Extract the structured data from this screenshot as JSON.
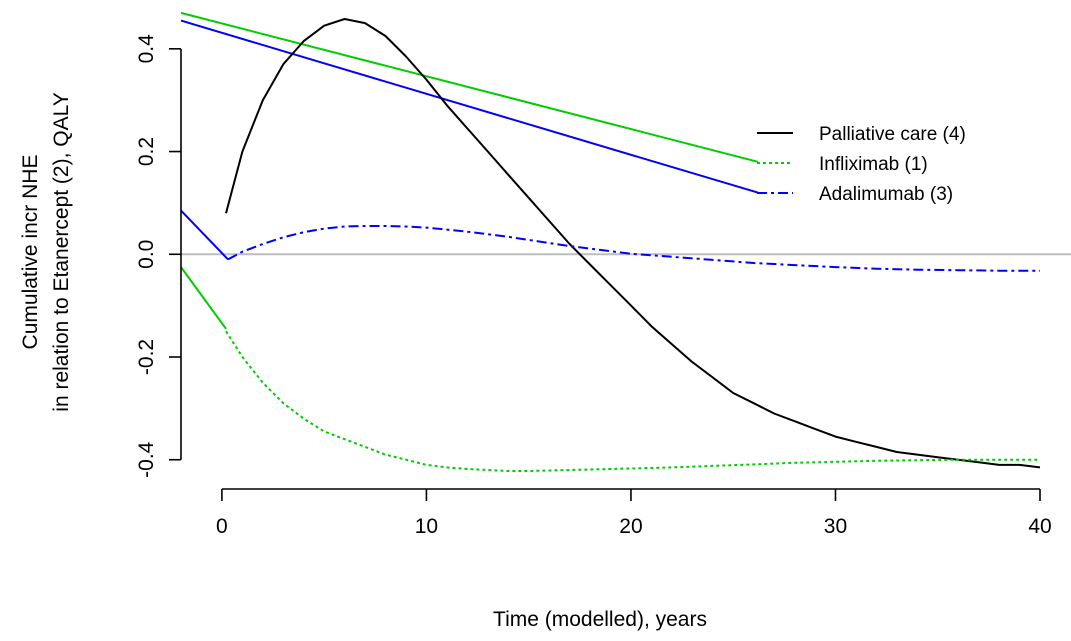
{
  "chart_data": {
    "type": "line",
    "xlabel": "Time (modelled), years",
    "ylabel_line1": "Cumulative incr NHE",
    "ylabel_line2": "in relation to Etanercept (2), QALY",
    "xlim": [
      -2,
      40
    ],
    "ylim": [
      -0.42,
      0.46
    ],
    "x_ticks": [
      0,
      10,
      20,
      30,
      40
    ],
    "x_tick_labels": [
      "0",
      "10",
      "20",
      "30",
      "40"
    ],
    "y_ticks": [
      -0.4,
      -0.2,
      0.0,
      0.2,
      0.4
    ],
    "y_tick_labels": [
      "-0.4",
      "-0.2",
      "0.0",
      "0.2",
      "0.4"
    ],
    "reference_line": {
      "y": 0,
      "color": "#bebebe"
    },
    "legend": {
      "placement": "right",
      "entries": [
        {
          "label": "Palliative care (4)",
          "color": "#000000",
          "dash": "solid"
        },
        {
          "label": "Infliximab (1)",
          "color": "#00cd00",
          "dash": "dotted"
        },
        {
          "label": "Adalimumab (3)",
          "color": "#0000ff",
          "dash": "dashdot"
        }
      ]
    },
    "series": [
      {
        "name": "Palliative care (4)",
        "color": "#000000",
        "dash": "solid",
        "x": [
          0.2,
          1,
          2,
          3,
          4,
          5,
          6,
          7,
          8,
          9,
          10,
          11,
          12,
          13,
          14,
          15,
          16,
          17,
          18,
          19,
          20,
          21,
          22,
          23,
          24,
          25,
          26,
          27,
          28,
          29,
          30,
          31,
          32,
          33,
          34,
          35,
          36,
          37,
          38,
          39,
          40
        ],
        "values": [
          0.08,
          0.2,
          0.3,
          0.37,
          0.415,
          0.445,
          0.458,
          0.45,
          0.425,
          0.385,
          0.34,
          0.29,
          0.245,
          0.2,
          0.155,
          0.11,
          0.065,
          0.02,
          -0.02,
          -0.06,
          -0.1,
          -0.14,
          -0.175,
          -0.21,
          -0.24,
          -0.27,
          -0.29,
          -0.31,
          -0.325,
          -0.34,
          -0.355,
          -0.365,
          -0.375,
          -0.385,
          -0.39,
          -0.395,
          -0.4,
          -0.405,
          -0.41,
          -0.41,
          -0.415
        ]
      },
      {
        "name": "Infliximab (1)",
        "color": "#00cd00",
        "dash": "dotted",
        "x": [
          0.2,
          1,
          2,
          3,
          4,
          5,
          6,
          7,
          8,
          9,
          10,
          11,
          12,
          13,
          14,
          15,
          16,
          17,
          18,
          19,
          20,
          22,
          24,
          26,
          28,
          30,
          32,
          34,
          36,
          38,
          40
        ],
        "values": [
          -0.15,
          -0.2,
          -0.25,
          -0.29,
          -0.32,
          -0.345,
          -0.36,
          -0.375,
          -0.39,
          -0.4,
          -0.41,
          -0.415,
          -0.418,
          -0.42,
          -0.422,
          -0.422,
          -0.421,
          -0.42,
          -0.419,
          -0.418,
          -0.417,
          -0.415,
          -0.412,
          -0.409,
          -0.406,
          -0.404,
          -0.402,
          -0.401,
          -0.4,
          -0.4,
          -0.4
        ]
      },
      {
        "name": "Adalimumab (3)",
        "color": "#0000ff",
        "dash": "dashdot",
        "x": [
          0.3,
          1,
          2,
          3,
          4,
          5,
          6,
          7,
          8,
          9,
          10,
          11,
          12,
          13,
          14,
          15,
          16,
          17,
          18,
          19,
          20,
          22,
          24,
          26,
          28,
          30,
          32,
          34,
          36,
          38,
          40
        ],
        "values": [
          -0.01,
          0.005,
          0.02,
          0.033,
          0.043,
          0.05,
          0.054,
          0.055,
          0.055,
          0.054,
          0.052,
          0.048,
          0.044,
          0.039,
          0.034,
          0.028,
          0.022,
          0.016,
          0.011,
          0.006,
          0.001,
          -0.005,
          -0.011,
          -0.017,
          -0.021,
          -0.025,
          -0.028,
          -0.03,
          -0.031,
          -0.032,
          -0.032
        ]
      }
    ],
    "extra_lines": [
      {
        "name": "",
        "color": "#00cd00",
        "x": [
          -2,
          26.2
        ],
        "values": [
          0.47,
          0.18
        ]
      },
      {
        "name": "",
        "color": "#0000ff",
        "x": [
          -2,
          26.2
        ],
        "values": [
          0.455,
          0.12
        ]
      },
      {
        "name": "",
        "color": "#00cd00",
        "x": [
          -2,
          0.2
        ],
        "values": [
          -0.025,
          -0.145
        ]
      },
      {
        "name": "",
        "color": "#0000ff",
        "x": [
          -2,
          0.3
        ],
        "values": [
          0.085,
          -0.01
        ]
      }
    ]
  }
}
